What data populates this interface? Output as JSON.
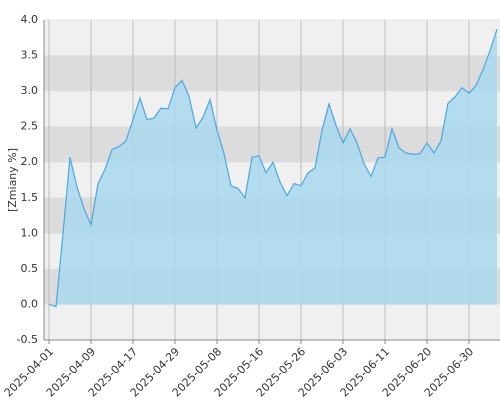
{
  "chart_data": {
    "type": "area",
    "y_label": "[Zmiany %]",
    "categories": [
      "2025-04-01",
      null,
      null,
      null,
      null,
      null,
      "2025-04-09",
      null,
      null,
      null,
      null,
      null,
      "2025-04-17",
      null,
      null,
      null,
      null,
      null,
      "2025-04-29",
      null,
      null,
      null,
      null,
      null,
      "2025-05-08",
      null,
      null,
      null,
      null,
      null,
      "2025-05-16",
      null,
      null,
      null,
      null,
      null,
      "2025-05-26",
      null,
      null,
      null,
      null,
      null,
      "2025-06-03",
      null,
      null,
      null,
      null,
      null,
      "2025-06-11",
      null,
      null,
      null,
      null,
      null,
      "2025-06-20",
      null,
      null,
      null,
      null,
      null,
      "2025-06-30",
      null,
      null,
      null,
      null
    ],
    "values": [
      0.0,
      -0.03,
      1.0,
      2.07,
      1.65,
      1.35,
      1.12,
      1.7,
      1.9,
      2.18,
      2.22,
      2.3,
      2.6,
      2.9,
      2.6,
      2.62,
      2.76,
      2.75,
      3.05,
      3.15,
      2.93,
      2.48,
      2.63,
      2.88,
      2.45,
      2.12,
      1.67,
      1.63,
      1.5,
      2.07,
      2.09,
      1.85,
      2.0,
      1.72,
      1.53,
      1.7,
      1.67,
      1.85,
      1.92,
      2.45,
      2.82,
      2.52,
      2.27,
      2.47,
      2.27,
      1.98,
      1.8,
      2.06,
      2.07,
      2.47,
      2.2,
      2.13,
      2.11,
      2.12,
      2.27,
      2.13,
      2.3,
      2.83,
      2.92,
      3.05,
      2.97,
      3.08,
      3.3,
      3.57,
      3.87
    ],
    "color": "#4da6e0",
    "ylim": [
      -0.5,
      4.0
    ],
    "yticks": [
      {
        "value": -0.5,
        "label": "-0.5"
      },
      {
        "value": 0,
        "label": "0.0"
      },
      {
        "value": 0.5,
        "label": "0.5"
      },
      {
        "value": 1,
        "label": "1.0"
      },
      {
        "value": 1.5,
        "label": "1.5"
      },
      {
        "value": 2,
        "label": "2.0"
      },
      {
        "value": 2.5,
        "label": "2.5"
      },
      {
        "value": 3,
        "label": "3.0"
      },
      {
        "value": 3.5,
        "label": "3.5"
      },
      {
        "value": 4,
        "label": "4.0"
      }
    ],
    "grid": true
  }
}
